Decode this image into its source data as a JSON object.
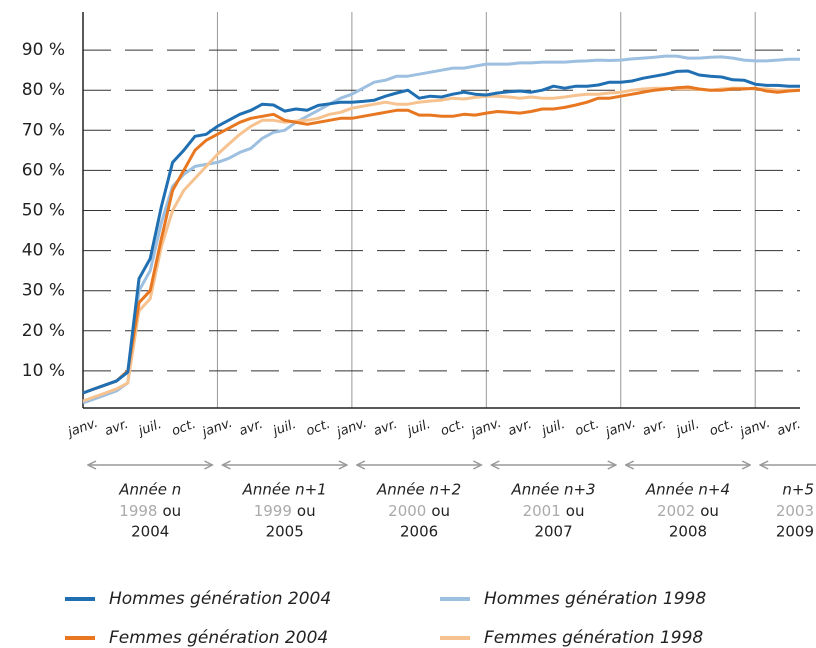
{
  "chart_data": {
    "type": "line",
    "categories": [
      "janv.",
      null,
      null,
      "avr.",
      null,
      null,
      "juil.",
      null,
      null,
      "oct.",
      null,
      null,
      "janv.",
      null,
      null,
      "avr.",
      null,
      null,
      "juil.",
      null,
      null,
      "oct.",
      null,
      null,
      "janv.",
      null,
      null,
      "avr.",
      null,
      null,
      "juil.",
      null,
      null,
      "oct.",
      null,
      null,
      "janv.",
      null,
      null,
      "avr.",
      null,
      null,
      "juil.",
      null,
      null,
      "oct.",
      null,
      null,
      "janv.",
      null,
      null,
      "avr.",
      null,
      null,
      "juil.",
      null,
      null,
      "oct.",
      null,
      null,
      "janv.",
      null,
      null,
      "avr.",
      null
    ],
    "ylim": [
      0,
      100
    ],
    "yticks": [
      {
        "value": 10,
        "label": "10 %"
      },
      {
        "value": 20,
        "label": "20 %"
      },
      {
        "value": 30,
        "label": "30 %"
      },
      {
        "value": 40,
        "label": "40 %"
      },
      {
        "value": 50,
        "label": "50 %"
      },
      {
        "value": 60,
        "label": "60 %"
      },
      {
        "value": 70,
        "label": "70 %"
      },
      {
        "value": 80,
        "label": "80 %"
      },
      {
        "value": 90,
        "label": "90 %"
      }
    ],
    "grid": true,
    "series": [
      {
        "name": "Hommes génération 2004",
        "color": "#1f6fb2",
        "values": [
          4.5,
          5.5,
          6.5,
          7.5,
          9.7,
          33,
          38,
          51,
          62,
          65,
          68.5,
          69,
          71,
          72.5,
          74,
          75,
          76.5,
          76.3,
          74.8,
          75.3,
          75,
          76.2,
          76.6,
          77,
          77,
          77.2,
          77.5,
          78.5,
          79.3,
          80,
          78,
          78.5,
          78.3,
          79,
          79.5,
          79,
          78.8,
          79.3,
          79.6,
          79.8,
          79.5,
          80,
          81,
          80.5,
          81,
          81,
          81.3,
          82,
          82,
          82.3,
          83,
          83.5,
          84,
          84.7,
          84.8,
          83.8,
          83.5,
          83.3,
          82.6,
          82.5,
          81.5,
          81.2,
          81.2,
          81,
          81
        ]
      },
      {
        "name": "Hommes génération 1998",
        "color": "#9dbfe0",
        "values": [
          2,
          3,
          4,
          5,
          7,
          30,
          35,
          47,
          56,
          59,
          61,
          61.5,
          62,
          63,
          64.5,
          65.5,
          68,
          69.5,
          70,
          72,
          73.5,
          75,
          76.5,
          78,
          79,
          80.5,
          82,
          82.5,
          83.5,
          83.5,
          84,
          84.5,
          85,
          85.5,
          85.5,
          86,
          86.5,
          86.5,
          86.5,
          86.8,
          86.8,
          87,
          87,
          87,
          87.2,
          87.3,
          87.5,
          87.4,
          87.5,
          87.8,
          88,
          88.2,
          88.5,
          88.5,
          88,
          88,
          88.2,
          88.3,
          88,
          87.5,
          87.3,
          87.3,
          87.5,
          87.7,
          87.7
        ]
      },
      {
        "name": "Femmes génération 2004",
        "color": "#e87722",
        "values": [
          4.5,
          5.5,
          6.5,
          7.5,
          10,
          27,
          30,
          43,
          55,
          60,
          65,
          67.5,
          69,
          70.5,
          72,
          73,
          73.5,
          74,
          72.5,
          72,
          71.5,
          72,
          72.5,
          73,
          73,
          73.5,
          74,
          74.5,
          75,
          75,
          73.8,
          73.8,
          73.5,
          73.5,
          74,
          73.8,
          74.3,
          74.7,
          74.5,
          74.3,
          74.7,
          75.3,
          75.3,
          75.7,
          76.3,
          77,
          78,
          78,
          78.5,
          79,
          79.5,
          80,
          80.3,
          80.6,
          80.8,
          80.3,
          80,
          80,
          80.3,
          80.3,
          80.5,
          79.8,
          79.5,
          79.8,
          80
        ]
      },
      {
        "name": "Femmes génération 1998",
        "color": "#f6c28f",
        "values": [
          2.5,
          3.5,
          4.5,
          5.5,
          7,
          25,
          28,
          41,
          50,
          55,
          58,
          61,
          64,
          66.5,
          69,
          71,
          72.5,
          72.5,
          72,
          72.3,
          72.5,
          73,
          74,
          74.5,
          75.5,
          76,
          76.5,
          77,
          76.5,
          76.5,
          77,
          77.3,
          77.5,
          78,
          77.8,
          78.2,
          78.5,
          78.5,
          78.3,
          78,
          78.3,
          78,
          78,
          78.3,
          78.7,
          79,
          79,
          79.3,
          79.5,
          80,
          80.3,
          80.5,
          80.5,
          80.3,
          80.3,
          80.2,
          80,
          80.3,
          80.5,
          80.5,
          80.3,
          80.3,
          80,
          80,
          80
        ]
      }
    ],
    "periods": [
      {
        "label": "Année n",
        "alt_year": "1998",
        "connector": "ou",
        "year": "2004"
      },
      {
        "label": "Année n+1",
        "alt_year": "1999",
        "connector": "ou",
        "year": "2005"
      },
      {
        "label": "Année n+2",
        "alt_year": "2000",
        "connector": "ou",
        "year": "2006"
      },
      {
        "label": "Année n+3",
        "alt_year": "2001",
        "connector": "ou",
        "year": "2007"
      },
      {
        "label": "Année n+4",
        "alt_year": "2002",
        "connector": "ou",
        "year": "2008"
      },
      {
        "label": "n+5",
        "alt_year": "2003",
        "year": "2009"
      }
    ]
  }
}
